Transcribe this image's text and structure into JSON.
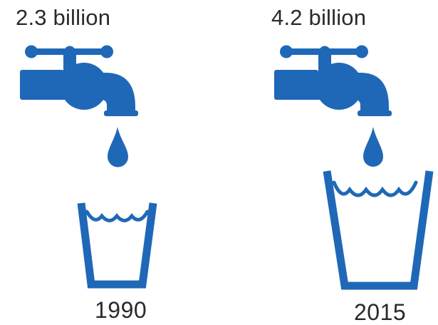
{
  "colors": {
    "icon": "#1f68b7",
    "text": "#2a2a2a",
    "background": "#ffffff"
  },
  "panels": [
    {
      "amount": "2.3 billion",
      "year": "1990",
      "icons": [
        "water-tap-icon",
        "water-drop-icon",
        "small-glass-icon"
      ]
    },
    {
      "amount": "4.2 billion",
      "year": "2015",
      "icons": [
        "water-tap-icon",
        "water-drop-icon",
        "large-glass-icon"
      ]
    }
  ]
}
